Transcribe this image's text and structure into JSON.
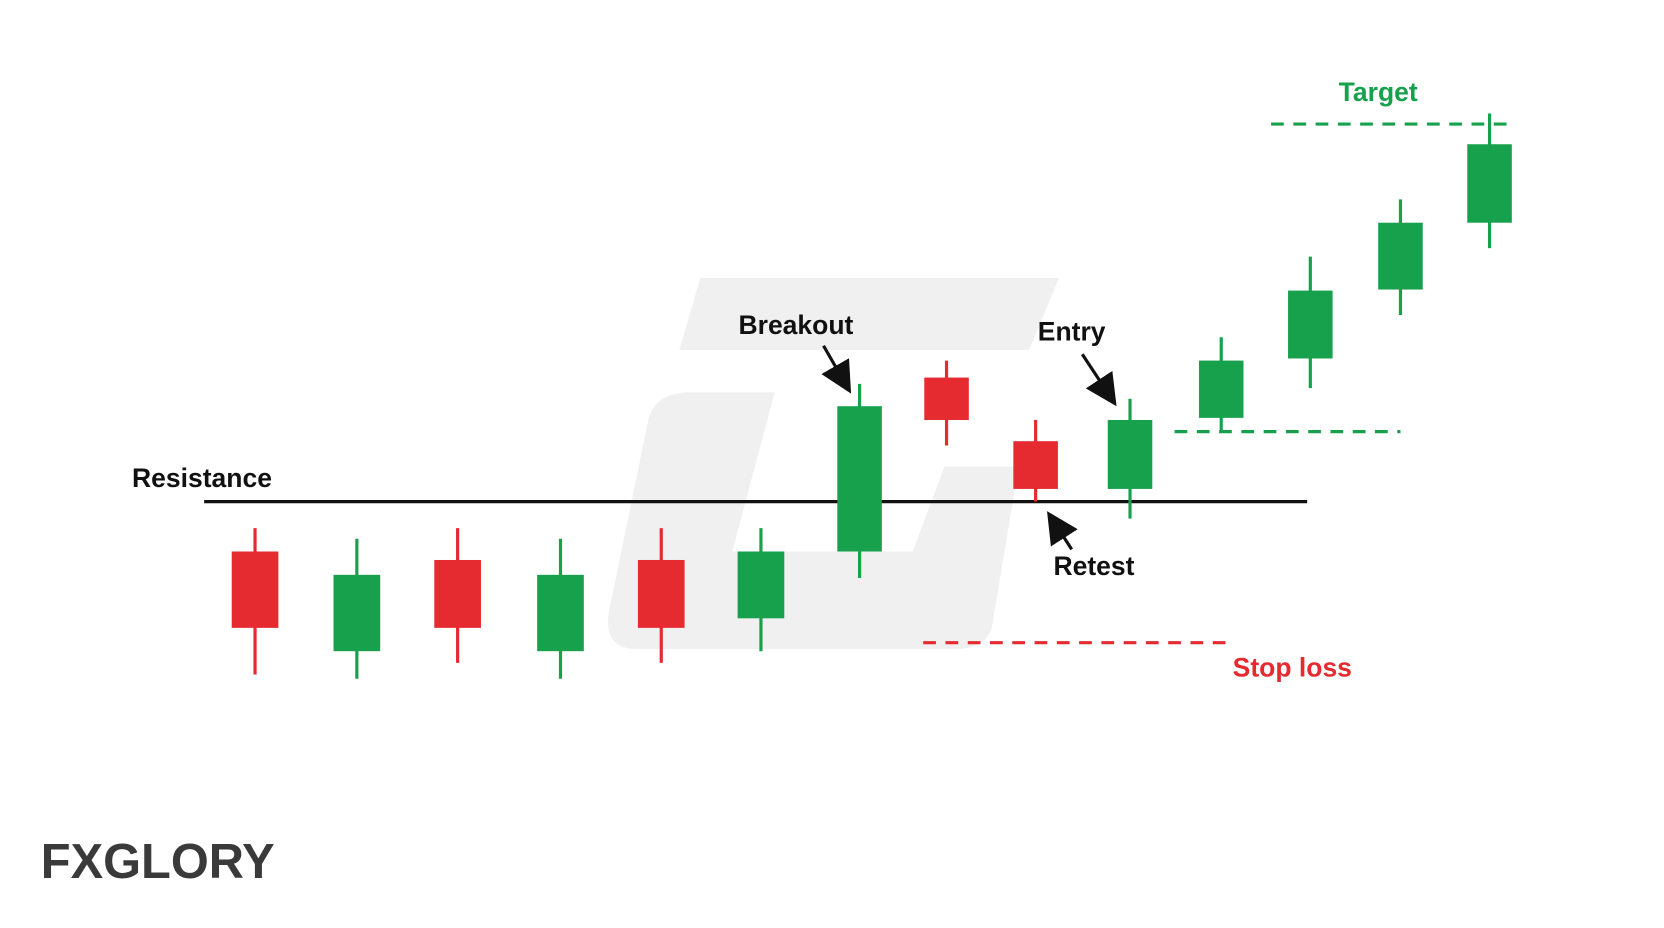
{
  "labels": {
    "resistance": "Resistance",
    "breakout": "Breakout",
    "entry": "Entry",
    "retest": "Retest",
    "stop_loss": "Stop loss",
    "target": "Target"
  },
  "logo": "FXGLORY"
}
